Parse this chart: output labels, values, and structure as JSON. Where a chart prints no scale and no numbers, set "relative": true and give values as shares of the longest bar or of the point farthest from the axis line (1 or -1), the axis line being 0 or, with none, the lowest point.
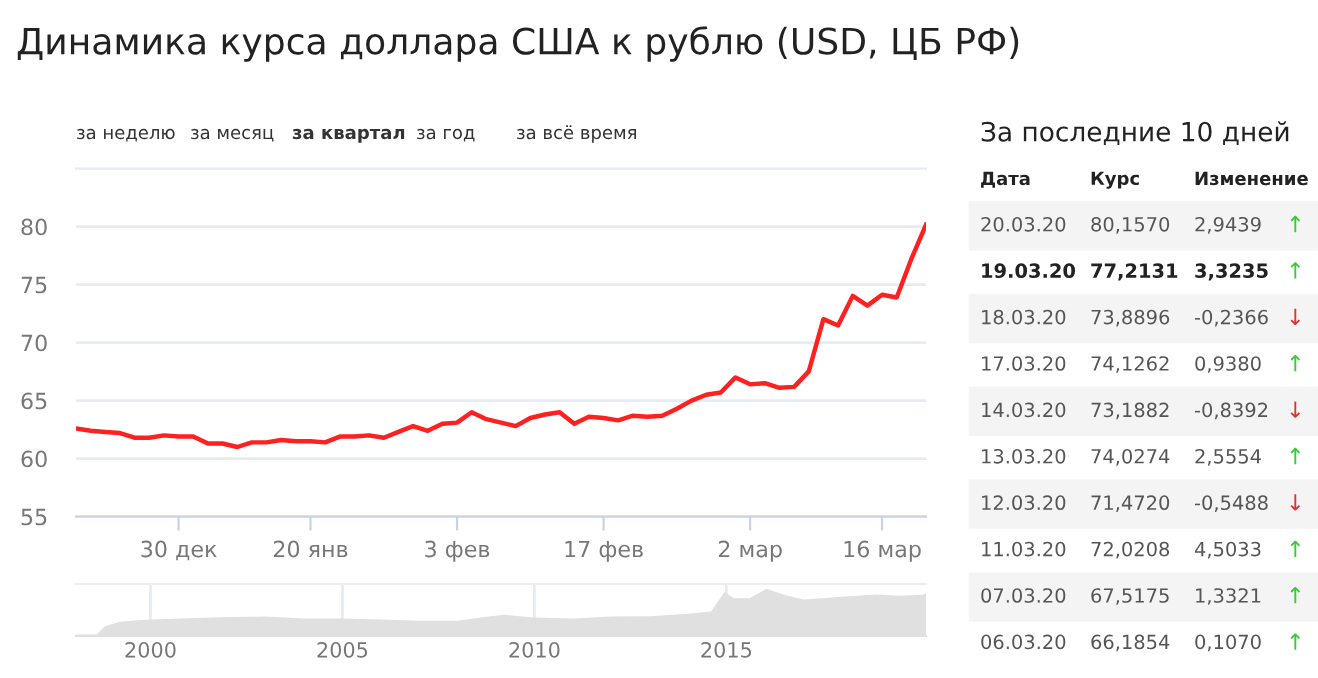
{
  "chart_data": [
    {
      "type": "line",
      "title": "Динамика курса доллара США к рублю (USD, ЦБ РФ)",
      "annotations": [
        "за неделю",
        "за месяц",
        "за квартал",
        "за год",
        "за всё время"
      ],
      "categories": [
        null,
        null,
        null,
        null,
        null,
        null,
        null,
        "30 дек",
        null,
        null,
        null,
        null,
        null,
        null,
        null,
        null,
        "20 янв",
        null,
        null,
        null,
        null,
        null,
        null,
        null,
        null,
        null,
        "3 фев",
        null,
        null,
        null,
        null,
        null,
        null,
        null,
        null,
        null,
        "17 фев",
        null,
        null,
        null,
        null,
        null,
        null,
        null,
        null,
        null,
        "2 мар",
        null,
        null,
        null,
        null,
        null,
        null,
        null,
        null,
        "16 мар",
        null,
        null,
        null
      ],
      "series": [
        {
          "color": "#ff2020",
          "values": [
            62.6,
            62.4,
            62.3,
            62.2,
            61.8,
            61.8,
            62.0,
            61.9,
            61.9,
            61.3,
            61.3,
            61.0,
            61.4,
            61.4,
            61.6,
            61.5,
            61.5,
            61.4,
            61.9,
            61.9,
            62.0,
            61.8,
            62.3,
            62.8,
            62.4,
            63.0,
            63.1,
            64.0,
            63.4,
            63.1,
            62.8,
            63.5,
            63.8,
            64.0,
            63.0,
            63.6,
            63.5,
            63.3,
            63.7,
            63.6,
            63.7,
            64.3,
            65.0,
            65.5,
            65.7,
            67.0,
            66.4,
            66.5,
            66.1,
            66.1854,
            67.5175,
            72.0208,
            71.472,
            74.0274,
            73.1882,
            74.1262,
            73.8896,
            77.2131,
            80.157
          ]
        }
      ],
      "ylim": [
        55,
        85
      ],
      "yticks": [
        55,
        60,
        65,
        70,
        75,
        80
      ],
      "grid": "y",
      "legend": false,
      "marker": "none",
      "line_style": "solid"
    },
    {
      "type": "area",
      "relative": true,
      "xlim": [
        1998.06,
        2020.2
      ],
      "xticks": [
        2000,
        2005,
        2010,
        2015
      ],
      "grid": "x",
      "series": [
        {
          "color": "#e0e0e0",
          "x": [
            1998.06,
            1998.6,
            1998.8,
            1999.2,
            1999.6,
            2000,
            2002,
            2003,
            2004,
            2005,
            2006,
            2007,
            2008,
            2008.7,
            2009.2,
            2010,
            2011,
            2012,
            2013,
            2014,
            2014.6,
            2014.95,
            2015.2,
            2015.6,
            2016.05,
            2016.5,
            2017,
            2018,
            2018.9,
            2019.5,
            2020.1,
            2020.2
          ],
          "values": [
            0.03,
            0.03,
            0.2,
            0.3,
            0.33,
            0.35,
            0.4,
            0.41,
            0.37,
            0.37,
            0.35,
            0.32,
            0.32,
            0.4,
            0.45,
            0.39,
            0.37,
            0.41,
            0.42,
            0.47,
            0.52,
            0.93,
            0.8,
            0.8,
            1.0,
            0.87,
            0.77,
            0.83,
            0.88,
            0.85,
            0.87,
            0.9
          ]
        }
      ]
    },
    {
      "type": "other",
      "title": "За последние 10 дней",
      "annotations": [
        "Дата",
        "Курс",
        "Изменение",
        "20.03.20",
        "80,1570",
        "2,9439",
        "↑",
        "19.03.20",
        "77,2131",
        "3,3235",
        "↑",
        "18.03.20",
        "73,8896",
        "-0,2366",
        "↓",
        "17.03.20",
        "74,1262",
        "0,9380",
        "↑",
        "14.03.20",
        "73,1882",
        "-0,8392",
        "↓",
        "13.03.20",
        "74,0274",
        "2,5554",
        "↑",
        "12.03.20",
        "71,4720",
        "-0,5488",
        "↓",
        "11.03.20",
        "72,0208",
        "4,5033",
        "↑",
        "07.03.20",
        "67,5175",
        "1,3321",
        "↑",
        "06.03.20",
        "66,1854",
        "0,1070",
        "↑"
      ],
      "colors": [
        "#33cc33",
        "#33cc33",
        "#e03030",
        "#33cc33",
        "#e03030",
        "#33cc33",
        "#e03030",
        "#33cc33",
        "#33cc33",
        "#33cc33"
      ]
    }
  ]
}
